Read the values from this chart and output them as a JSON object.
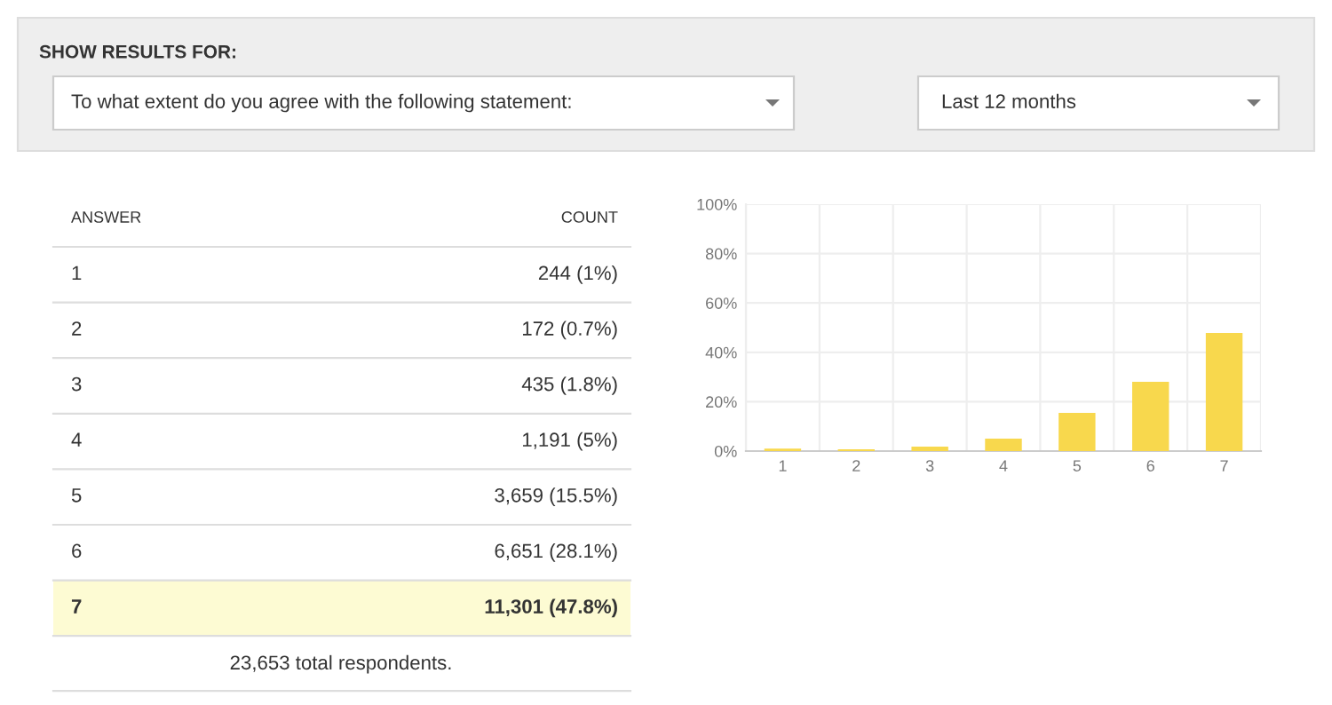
{
  "chart_data": {
    "type": "bar",
    "categories": [
      "1",
      "2",
      "3",
      "4",
      "5",
      "6",
      "7"
    ],
    "values": [
      1,
      0.7,
      1.8,
      5,
      15.5,
      28.1,
      47.8
    ],
    "color": "#f8d84d",
    "ylim": [
      0,
      100
    ],
    "yticks": [
      {
        "value": 0,
        "label": "0%"
      },
      {
        "value": 20,
        "label": "20%"
      },
      {
        "value": 40,
        "label": "40%"
      },
      {
        "value": 60,
        "label": "60%"
      },
      {
        "value": 80,
        "label": "80%"
      },
      {
        "value": 100,
        "label": "100%"
      }
    ],
    "grid": true,
    "annotations": [
      "SHOW RESULTS FOR:",
      "To what extent do you agree with the following statement:",
      "Last 12 months",
      "ANSWER",
      "COUNT",
      "23,653 total respondents.",
      "244 (1%)",
      "172 (0.7%)",
      "435 (1.8%)",
      "1,191 (5%)",
      "3,659 (15.5%)",
      "6,651 (28.1%)",
      "11,301 (47.8%)"
    ]
  }
}
